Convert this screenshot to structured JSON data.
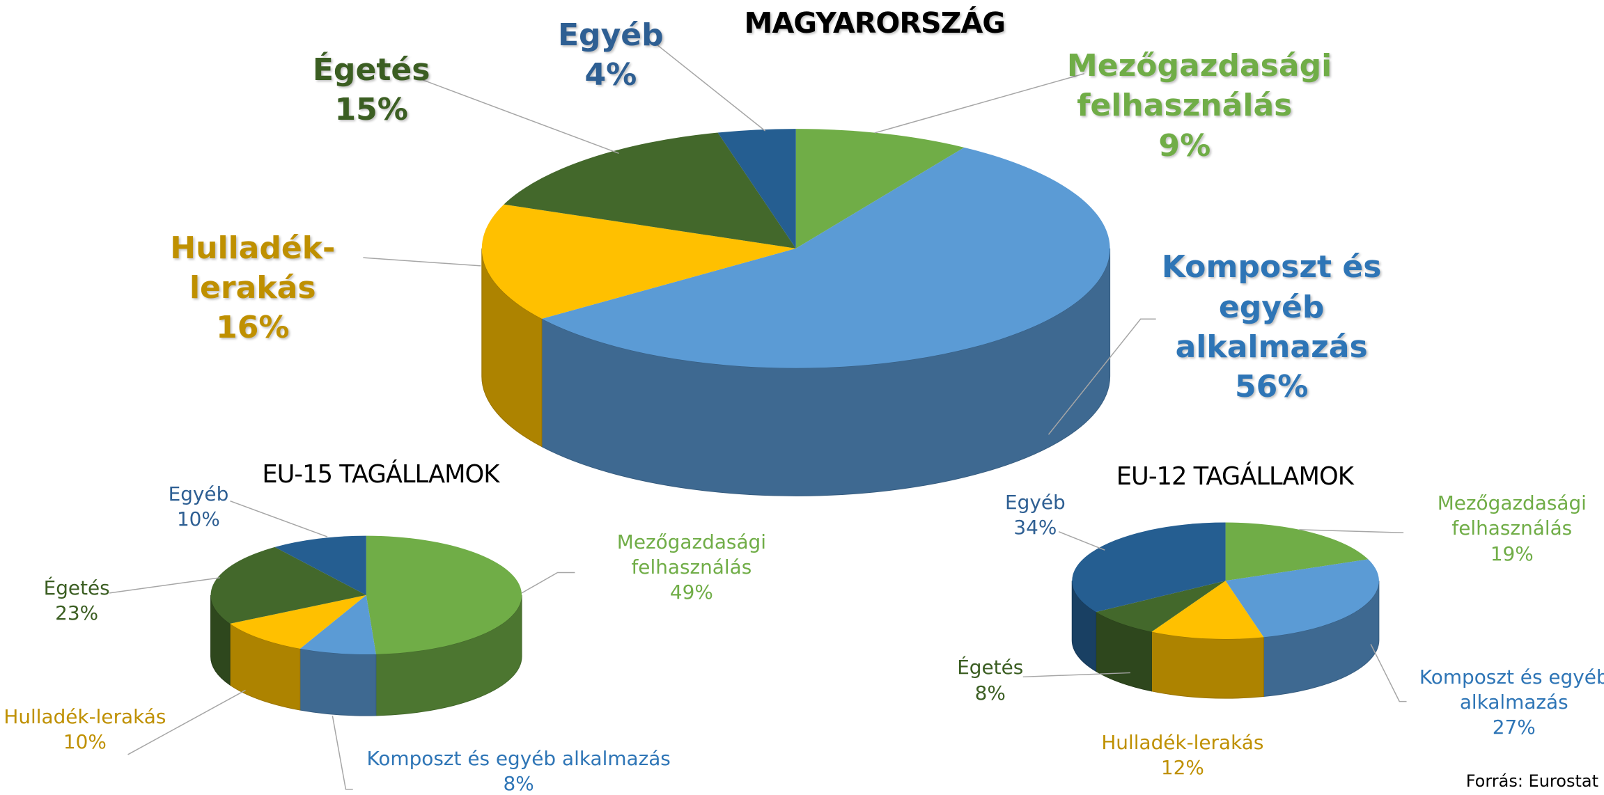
{
  "chart_data": [
    {
      "type": "pie",
      "title": "MAGYARORSZÁG",
      "categories": [
        "Mezőgazdasági felhasználás",
        "Komposzt és egyéb alkalmazás",
        "Hulladék-lerakás",
        "Égetés",
        "Egyéb"
      ],
      "values": [
        9,
        56,
        16,
        15,
        4
      ],
      "value_labels": [
        "9%",
        "56%",
        "16%",
        "15%",
        "4%"
      ],
      "colors": [
        "#70ad47",
        "#5b9bd5",
        "#ffc000",
        "#43682b",
        "#255e91"
      ],
      "label_colors": [
        "#70ad47",
        "#2e75b6",
        "#bf9000",
        "#3b5e22",
        "#2e5f93"
      ]
    },
    {
      "type": "pie",
      "title": "EU-15 TAGÁLLAMOK",
      "categories": [
        "Mezőgazdasági felhasználás",
        "Komposzt és egyéb alkalmazás",
        "Hulladék-lerakás",
        "Égetés",
        "Egyéb"
      ],
      "values": [
        49,
        8,
        10,
        23,
        10
      ],
      "value_labels": [
        "49%",
        "8%",
        "10%",
        "23%",
        "10%"
      ],
      "colors": [
        "#70ad47",
        "#5b9bd5",
        "#ffc000",
        "#43682b",
        "#255e91"
      ],
      "label_colors": [
        "#70ad47",
        "#2e75b6",
        "#bf9000",
        "#3b5e22",
        "#2e5f93"
      ]
    },
    {
      "type": "pie",
      "title": "EU-12 TAGÁLLAMOK",
      "categories": [
        "Mezőgazdasági felhasználás",
        "Komposzt és egyéb alkalmazás",
        "Hulladék-lerakás",
        "Égetés",
        "Egyéb"
      ],
      "values": [
        19,
        27,
        12,
        8,
        34
      ],
      "value_labels": [
        "19%",
        "27%",
        "12%",
        "8%",
        "34%"
      ],
      "colors": [
        "#70ad47",
        "#5b9bd5",
        "#ffc000",
        "#43682b",
        "#255e91"
      ],
      "label_colors": [
        "#70ad47",
        "#2e75b6",
        "#bf9000",
        "#3b5e22",
        "#2e5f93"
      ]
    }
  ],
  "source": "Forrás: Eurostat"
}
